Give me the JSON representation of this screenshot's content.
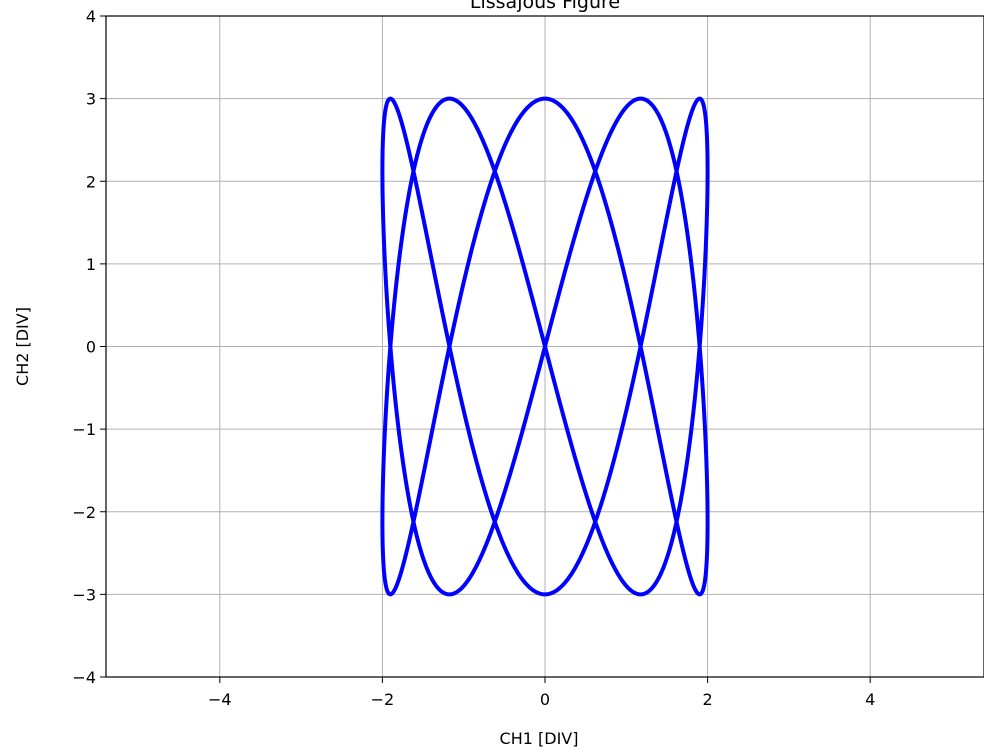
{
  "chart_data": {
    "type": "line",
    "title": "Lissajous Figure",
    "xlabel": "CH1 [DIV]",
    "ylabel": "CH2 [DIV]",
    "xlim": [
      -5.4,
      5.4
    ],
    "ylim": [
      -4,
      4
    ],
    "xticks": [
      -4,
      -2,
      0,
      2,
      4
    ],
    "yticks": [
      -4,
      -3,
      -2,
      -1,
      0,
      1,
      2,
      3,
      4
    ],
    "xtick_labels": [
      "−4",
      "−2",
      "0",
      "2",
      "4"
    ],
    "ytick_labels": [
      "−4",
      "−3",
      "−2",
      "−1",
      "0",
      "1",
      "2",
      "3",
      "4"
    ],
    "grid": true,
    "series": [
      {
        "description": "parametric curve x = A_x * sin(f_x * t), y = A_y * cos(f_y * t)",
        "color": "#0000ff",
        "x_amplitude": 2,
        "y_amplitude": 3,
        "x_frequency": 2,
        "y_frequency": 5,
        "samples": 2000
      }
    ]
  }
}
